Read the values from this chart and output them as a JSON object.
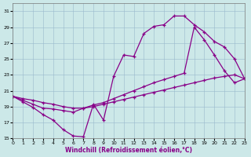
{
  "xlabel": "Windchill (Refroidissement éolien,°C)",
  "bg_color": "#cce8e8",
  "grid_color": "#99b8cc",
  "line_color": "#880088",
  "xlim": [
    0,
    23
  ],
  "ylim": [
    15,
    32
  ],
  "xticks": [
    0,
    1,
    2,
    3,
    4,
    5,
    6,
    7,
    8,
    9,
    10,
    11,
    12,
    13,
    14,
    15,
    16,
    17,
    18,
    19,
    20,
    21,
    22,
    23
  ],
  "yticks": [
    15,
    17,
    19,
    21,
    23,
    25,
    27,
    29,
    31
  ],
  "series1_x": [
    0,
    1,
    2,
    3,
    4,
    5,
    6,
    7,
    8,
    9,
    10,
    11,
    12,
    13,
    14,
    15,
    16,
    17,
    18,
    19,
    20,
    21,
    22,
    23
  ],
  "series1_y": [
    20.3,
    19.6,
    18.9,
    18.0,
    17.3,
    16.1,
    15.3,
    15.2,
    19.3,
    17.3,
    22.8,
    25.5,
    25.3,
    28.2,
    29.1,
    29.3,
    30.4,
    30.4,
    29.3,
    28.4,
    27.2,
    26.5,
    25.0,
    22.5
  ],
  "series2_x": [
    0,
    1,
    2,
    3,
    4,
    5,
    6,
    7,
    8,
    9,
    10,
    11,
    12,
    13,
    14,
    15,
    16,
    17,
    18,
    19,
    20,
    21,
    22,
    23
  ],
  "series2_y": [
    20.3,
    19.8,
    19.3,
    18.8,
    18.7,
    18.5,
    18.3,
    18.8,
    19.2,
    19.5,
    20.0,
    20.5,
    21.0,
    21.5,
    22.0,
    22.4,
    22.8,
    23.2,
    29.0,
    27.4,
    25.5,
    23.5,
    22.0,
    22.5
  ],
  "series3_x": [
    0,
    1,
    2,
    3,
    4,
    5,
    6,
    7,
    8,
    9,
    10,
    11,
    12,
    13,
    14,
    15,
    16,
    17,
    18,
    19,
    20,
    21,
    22,
    23
  ],
  "series3_y": [
    20.3,
    20.0,
    19.8,
    19.5,
    19.3,
    19.0,
    18.8,
    18.8,
    19.0,
    19.3,
    19.6,
    19.9,
    20.2,
    20.5,
    20.8,
    21.1,
    21.4,
    21.7,
    22.0,
    22.3,
    22.6,
    22.8,
    23.0,
    22.5
  ]
}
